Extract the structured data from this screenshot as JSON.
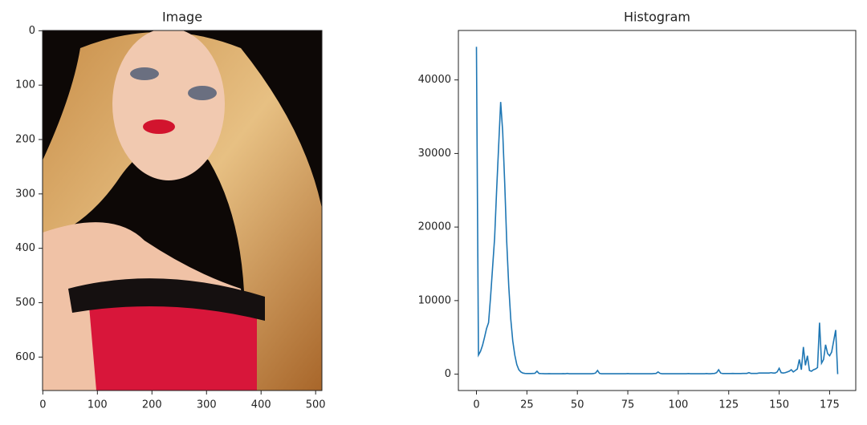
{
  "chart_data": [
    {
      "type": "image",
      "title": "Image",
      "xlim": [
        -0.5,
        511.5
      ],
      "ylim": [
        661.5,
        -0.5
      ],
      "xticks": [
        0,
        100,
        200,
        300,
        400,
        500
      ],
      "yticks": [
        0,
        100,
        200,
        300,
        400,
        500,
        600
      ]
    },
    {
      "type": "line",
      "title": "Histogram",
      "color": "#1f77b4",
      "xlim": [
        -8.95,
        187.95
      ],
      "ylim": [
        -2225,
        46725
      ],
      "xticks": [
        0,
        25,
        50,
        75,
        100,
        125,
        150,
        175
      ],
      "yticks": [
        0,
        10000,
        20000,
        30000,
        40000
      ],
      "x": [
        0,
        1,
        2,
        3,
        4,
        5,
        6,
        7,
        8,
        9,
        10,
        11,
        12,
        13,
        14,
        15,
        16,
        17,
        18,
        19,
        20,
        21,
        22,
        23,
        24,
        25,
        26,
        27,
        28,
        29,
        30,
        31,
        32,
        33,
        34,
        35,
        36,
        37,
        38,
        39,
        40,
        41,
        42,
        43,
        44,
        45,
        46,
        47,
        48,
        49,
        50,
        51,
        52,
        53,
        54,
        55,
        56,
        57,
        58,
        59,
        60,
        61,
        62,
        63,
        64,
        65,
        66,
        67,
        68,
        69,
        70,
        71,
        72,
        73,
        74,
        75,
        76,
        77,
        78,
        79,
        80,
        81,
        82,
        83,
        84,
        85,
        86,
        87,
        88,
        89,
        90,
        91,
        92,
        93,
        94,
        95,
        96,
        97,
        98,
        99,
        100,
        101,
        102,
        103,
        104,
        105,
        106,
        107,
        108,
        109,
        110,
        111,
        112,
        113,
        114,
        115,
        116,
        117,
        118,
        119,
        120,
        121,
        122,
        123,
        124,
        125,
        126,
        127,
        128,
        129,
        130,
        131,
        132,
        133,
        134,
        135,
        136,
        137,
        138,
        139,
        140,
        141,
        142,
        143,
        144,
        145,
        146,
        147,
        148,
        149,
        150,
        151,
        152,
        153,
        154,
        155,
        156,
        157,
        158,
        159,
        160,
        161,
        162,
        163,
        164,
        165,
        166,
        167,
        168,
        169,
        170,
        171,
        172,
        173,
        174,
        175,
        176,
        177,
        178,
        179
      ],
      "values": [
        44500,
        2600,
        3100,
        3900,
        5000,
        6200,
        7000,
        10500,
        14500,
        18500,
        25000,
        31000,
        37000,
        33000,
        26000,
        18000,
        12000,
        7500,
        4500,
        2600,
        1300,
        600,
        300,
        150,
        100,
        80,
        90,
        80,
        100,
        120,
        400,
        100,
        80,
        70,
        60,
        60,
        70,
        60,
        60,
        60,
        60,
        60,
        60,
        70,
        60,
        100,
        60,
        60,
        60,
        60,
        60,
        60,
        60,
        60,
        60,
        60,
        60,
        60,
        80,
        150,
        500,
        100,
        60,
        60,
        60,
        60,
        60,
        60,
        60,
        60,
        60,
        60,
        60,
        60,
        60,
        80,
        60,
        60,
        60,
        60,
        60,
        60,
        60,
        60,
        60,
        60,
        60,
        60,
        80,
        100,
        300,
        100,
        60,
        60,
        60,
        60,
        60,
        60,
        60,
        60,
        60,
        60,
        60,
        60,
        60,
        80,
        60,
        60,
        60,
        60,
        60,
        60,
        60,
        60,
        80,
        60,
        60,
        80,
        100,
        200,
        600,
        150,
        80,
        80,
        80,
        80,
        80,
        100,
        80,
        80,
        80,
        80,
        100,
        100,
        100,
        200,
        100,
        100,
        100,
        100,
        150,
        150,
        150,
        150,
        150,
        150,
        200,
        150,
        150,
        300,
        800,
        200,
        150,
        200,
        300,
        400,
        600,
        300,
        500,
        700,
        2000,
        600,
        3700,
        1200,
        2500,
        500,
        400,
        600,
        700,
        900,
        7000,
        1500,
        2000,
        4000,
        2800,
        2500,
        3000,
        4500,
        6000,
        0
      ]
    }
  ]
}
